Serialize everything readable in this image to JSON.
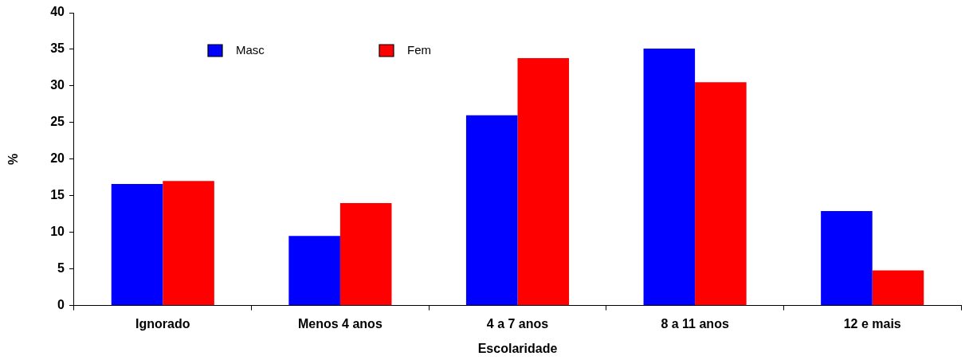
{
  "chart_data": {
    "type": "bar",
    "xlabel": "Escolaridade",
    "ylabel": "%",
    "categories": [
      "Ignorado",
      "Menos 4 anos",
      "4 a 7 anos",
      "8 a 11 anos",
      "12 e mais"
    ],
    "series": [
      {
        "name": "Masc",
        "color": "#0000ff",
        "values": [
          16.6,
          9.5,
          26.0,
          35.1,
          12.9
        ]
      },
      {
        "name": "Fem",
        "color": "#ff0000",
        "values": [
          17.0,
          14.0,
          33.8,
          30.5,
          4.8
        ]
      }
    ],
    "ylim": [
      0,
      40
    ],
    "yticks": [
      0,
      5,
      10,
      15,
      20,
      25,
      30,
      35,
      40
    ],
    "grid": false,
    "legend": "top"
  }
}
